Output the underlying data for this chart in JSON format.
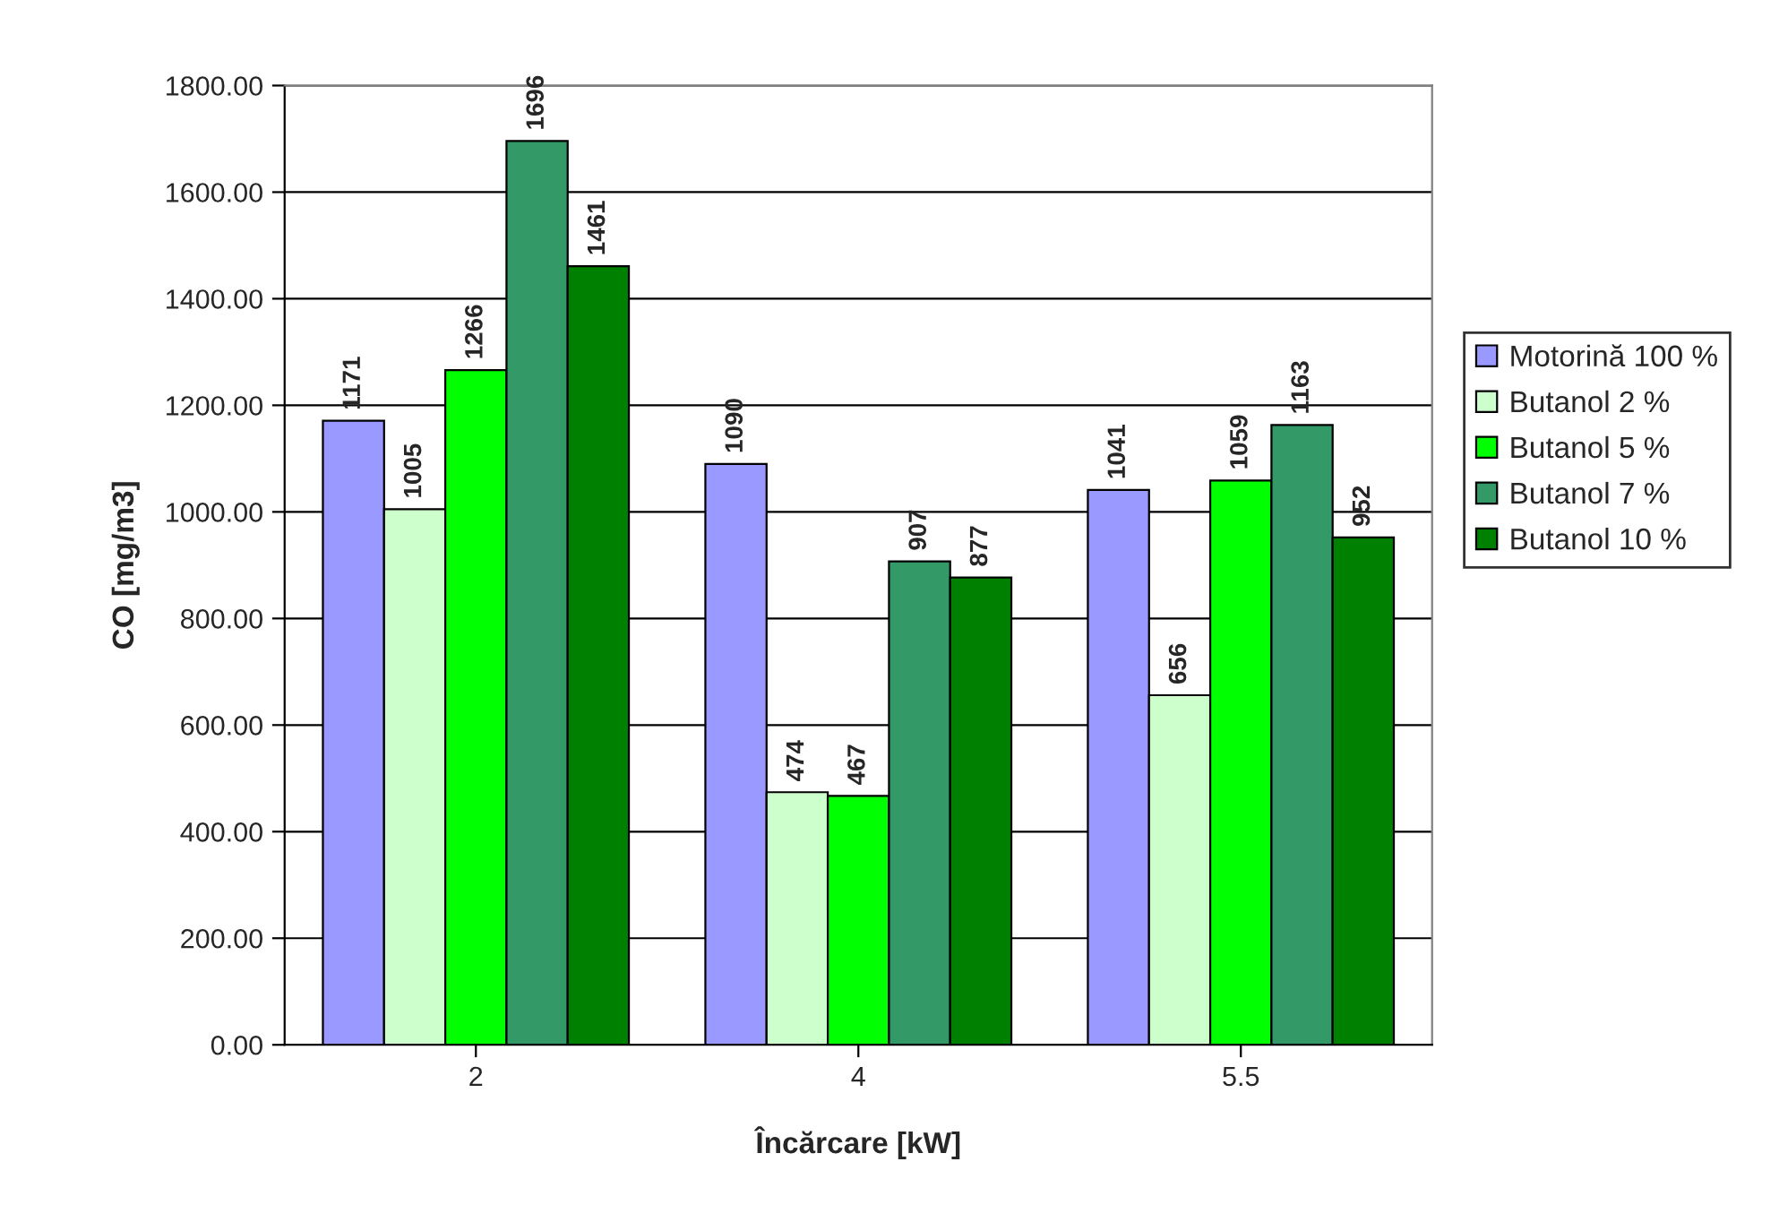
{
  "chart_data": {
    "type": "bar",
    "xlabel": "Încărcare [kW]",
    "ylabel": "CO [mg/m3]",
    "categories": [
      "2",
      "4",
      "5.5"
    ],
    "series": [
      {
        "name": "Motorină 100 %",
        "color": "#9999ff",
        "values": [
          1171,
          1090,
          1041
        ]
      },
      {
        "name": "Butanol 2 %",
        "color": "#ccffcc",
        "values": [
          1005,
          474,
          656
        ]
      },
      {
        "name": "Butanol 5 %",
        "color": "#00ff00",
        "values": [
          1266,
          467,
          1059
        ]
      },
      {
        "name": "Butanol 7 %",
        "color": "#339966",
        "values": [
          1696,
          907,
          1163
        ]
      },
      {
        "name": "Butanol 10 %",
        "color": "#008000",
        "values": [
          1461,
          877,
          952
        ]
      }
    ],
    "ylim": [
      0,
      1800
    ],
    "yticks": [
      {
        "value": 0,
        "label": "0.00"
      },
      {
        "value": 200,
        "label": "200.00"
      },
      {
        "value": 400,
        "label": "400.00"
      },
      {
        "value": 600,
        "label": "600.00"
      },
      {
        "value": 800,
        "label": "800.00"
      },
      {
        "value": 1000,
        "label": "1000.00"
      },
      {
        "value": 1200,
        "label": "1200.00"
      },
      {
        "value": 1400,
        "label": "1400.00"
      },
      {
        "value": 1600,
        "label": "1600.00"
      },
      {
        "value": 1800,
        "label": "1800.00"
      }
    ],
    "grid": "y",
    "legend": "right",
    "data_labels": true
  }
}
